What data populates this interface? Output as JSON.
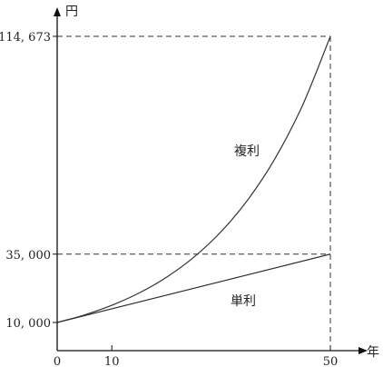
{
  "chart_data": {
    "type": "line",
    "ylabel": "円",
    "xlabel": "年",
    "xlim": [
      0,
      50
    ],
    "ylim": [
      10000,
      114673
    ],
    "x_ticks": [
      {
        "value": 0,
        "label": "0"
      },
      {
        "value": 10,
        "label": "10"
      },
      {
        "value": 50,
        "label": "50"
      }
    ],
    "y_ticks": [
      {
        "value": 10000,
        "label": "10, 000"
      },
      {
        "value": 35000,
        "label": "35, 000"
      },
      {
        "value": 114673,
        "label": "114, 673"
      }
    ],
    "series": [
      {
        "name": "単利",
        "x": [
          0,
          50
        ],
        "values": [
          10000,
          35000
        ]
      },
      {
        "name": "複利",
        "x": [
          0,
          5,
          10,
          15,
          20,
          25,
          30,
          35,
          40,
          45,
          50
        ],
        "values": [
          10000,
          12763,
          16289,
          20789,
          26533,
          33864,
          43219,
          55160,
          70400,
          89850,
          114673
        ]
      }
    ],
    "guides": [
      {
        "from": "y-axis",
        "to": [
          50,
          114673
        ]
      },
      {
        "from": "y-axis",
        "to": [
          50,
          35000
        ]
      },
      {
        "from": "x-axis",
        "to": [
          50,
          114673
        ]
      }
    ],
    "colors": {
      "line": "#333333",
      "axis": "#111111",
      "dash": "#333333"
    },
    "grid": false
  }
}
